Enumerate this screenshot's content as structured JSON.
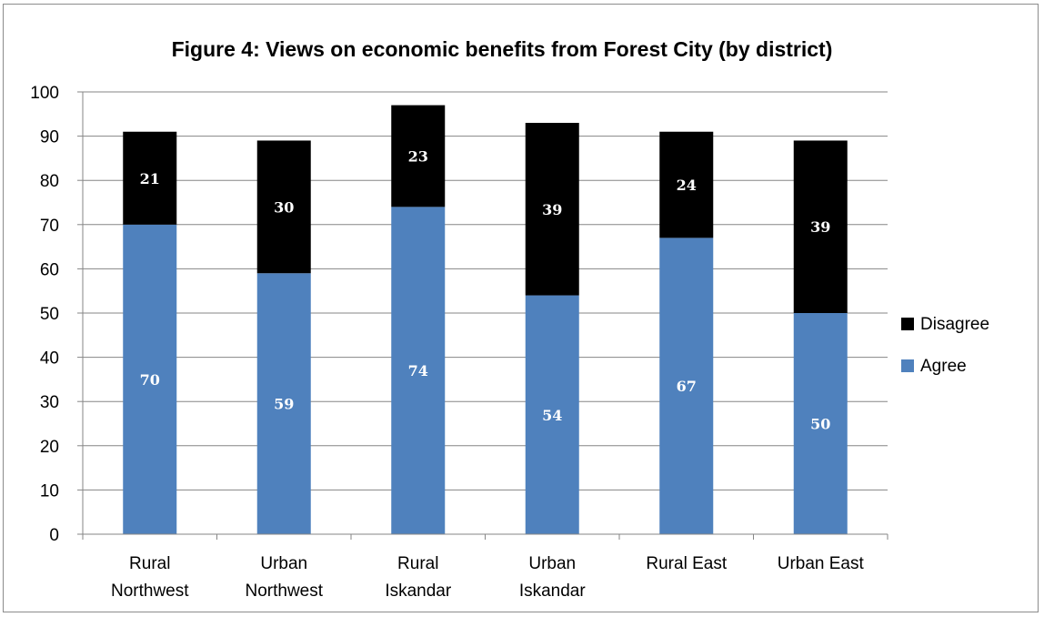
{
  "chart_data": {
    "type": "bar",
    "stacked": true,
    "title": "Figure 4: Views on economic benefits from Forest City (by district)",
    "categories": [
      [
        "Rural",
        "Northwest"
      ],
      [
        "Urban",
        "Northwest"
      ],
      [
        "Rural",
        "Iskandar"
      ],
      [
        "Urban",
        "Iskandar"
      ],
      [
        "Rural East"
      ],
      [
        "Urban East"
      ]
    ],
    "series": [
      {
        "name": "Agree",
        "color": "#4f81bd",
        "values": [
          70,
          59,
          74,
          54,
          67,
          50
        ]
      },
      {
        "name": "Disagree",
        "color": "#000000",
        "values": [
          21,
          30,
          23,
          39,
          24,
          39
        ]
      }
    ],
    "legend_order": [
      "Disagree",
      "Agree"
    ],
    "legend_position": "right",
    "ylim": [
      0,
      100
    ],
    "yticks": [
      "0",
      "10",
      "20",
      "30",
      "40",
      "50",
      "60",
      "70",
      "80",
      "90",
      "100"
    ],
    "grid": true
  }
}
